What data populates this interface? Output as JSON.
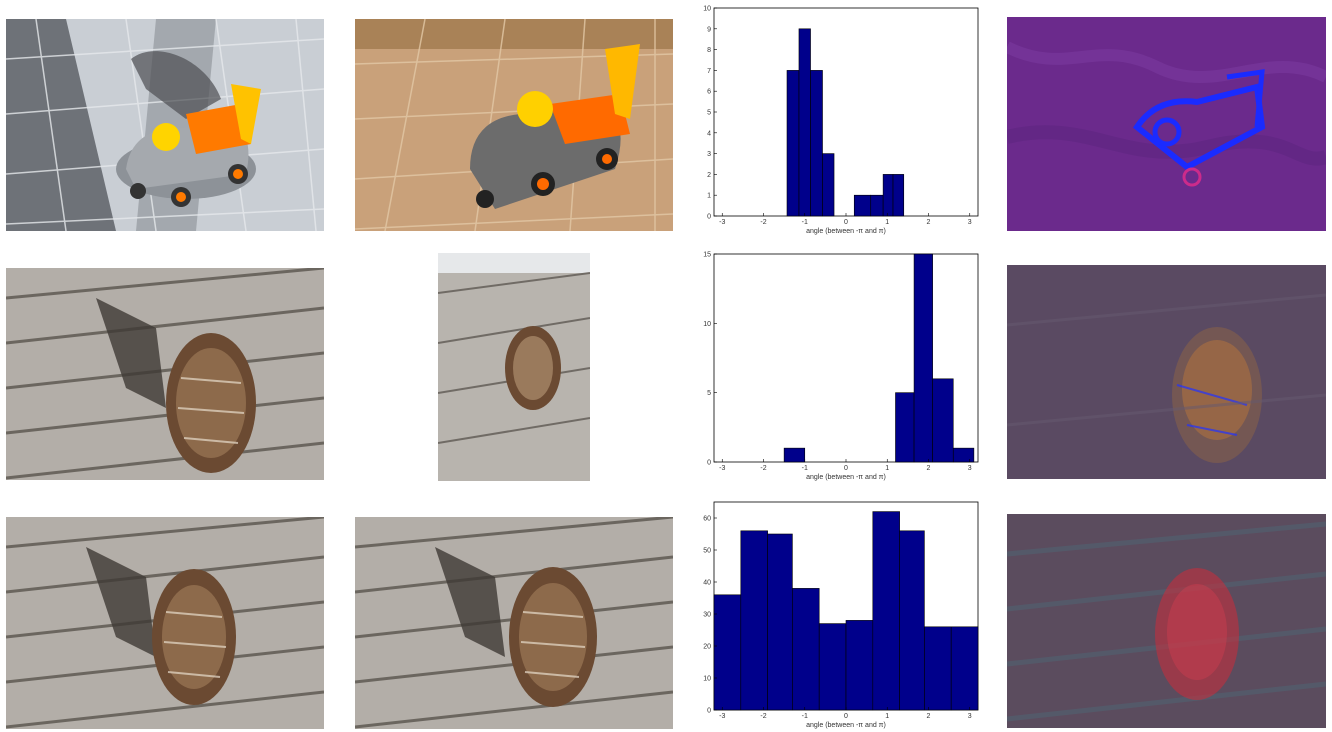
{
  "chart_data": [
    {
      "type": "bar",
      "xlabel": "angle (between -π and π)",
      "ylabel": "",
      "xlim": [
        -3.2,
        3.2
      ],
      "ylim": [
        0,
        10
      ],
      "xticks": [
        -3,
        -2,
        -1,
        0,
        1,
        2,
        3
      ],
      "yticks": [
        0,
        1,
        2,
        3,
        4,
        5,
        6,
        7,
        8,
        9,
        10
      ],
      "bar_color": "#00008b",
      "bins": [
        {
          "x0": -1.43,
          "x1": -1.14,
          "value": 7
        },
        {
          "x0": -1.14,
          "x1": -0.86,
          "value": 9
        },
        {
          "x0": -0.86,
          "x1": -0.57,
          "value": 7
        },
        {
          "x0": -0.57,
          "x1": -0.29,
          "value": 3
        },
        {
          "x0": 0.2,
          "x1": 0.6,
          "value": 1
        },
        {
          "x0": 0.6,
          "x1": 0.9,
          "value": 1
        },
        {
          "x0": 0.9,
          "x1": 1.14,
          "value": 2
        },
        {
          "x0": 1.14,
          "x1": 1.4,
          "value": 2
        }
      ]
    },
    {
      "type": "bar",
      "xlabel": "angle (between -π and π)",
      "ylabel": "",
      "xlim": [
        -3.2,
        3.2
      ],
      "ylim": [
        0,
        15
      ],
      "xticks": [
        -3,
        -2,
        -1,
        0,
        1,
        2,
        3
      ],
      "yticks": [
        0,
        5,
        10,
        15
      ],
      "bar_color": "#00008b",
      "bins": [
        {
          "x0": -1.5,
          "x1": -1.0,
          "value": 1
        },
        {
          "x0": 1.2,
          "x1": 1.65,
          "value": 5
        },
        {
          "x0": 1.65,
          "x1": 2.1,
          "value": 15
        },
        {
          "x0": 2.1,
          "x1": 2.6,
          "value": 6
        },
        {
          "x0": 2.6,
          "x1": 3.1,
          "value": 1
        }
      ]
    },
    {
      "type": "bar",
      "xlabel": "angle (between -π and π)",
      "ylabel": "",
      "xlim": [
        -3.2,
        3.2
      ],
      "ylim": [
        0,
        65
      ],
      "xticks": [
        -3,
        -2,
        -1,
        0,
        1,
        2,
        3
      ],
      "yticks": [
        0,
        10,
        20,
        30,
        40,
        50,
        60
      ],
      "bar_color": "#00008b",
      "bins": [
        {
          "x0": -3.2,
          "x1": -2.55,
          "value": 36
        },
        {
          "x0": -2.55,
          "x1": -1.9,
          "value": 56
        },
        {
          "x0": -1.9,
          "x1": -1.3,
          "value": 55
        },
        {
          "x0": -1.3,
          "x1": -0.65,
          "value": 38
        },
        {
          "x0": -0.65,
          "x1": 0.0,
          "value": 27
        },
        {
          "x0": 0.0,
          "x1": 0.65,
          "value": 28
        },
        {
          "x0": 0.65,
          "x1": 1.3,
          "value": 62
        },
        {
          "x0": 1.3,
          "x1": 1.9,
          "value": 56
        },
        {
          "x0": 1.9,
          "x1": 2.55,
          "value": 26
        },
        {
          "x0": 2.55,
          "x1": 3.2,
          "value": 26
        }
      ]
    }
  ],
  "photos": [
    {
      "subject": "toy-car",
      "variant": "shadowed"
    },
    {
      "subject": "toy-car",
      "variant": "warm"
    },
    {
      "subject": "pine-cone",
      "variant": "deck"
    },
    {
      "subject": "pine-cone",
      "variant": "deck-small"
    },
    {
      "subject": "pine-cone",
      "variant": "deck"
    },
    {
      "subject": "pine-cone",
      "variant": "deck"
    }
  ],
  "maps": [
    {
      "tone": "purple",
      "highlight": "#1a2bff"
    },
    {
      "tone": "slate",
      "highlight": "#c07a3a"
    },
    {
      "tone": "slate",
      "highlight": "#cc2b3b"
    }
  ]
}
